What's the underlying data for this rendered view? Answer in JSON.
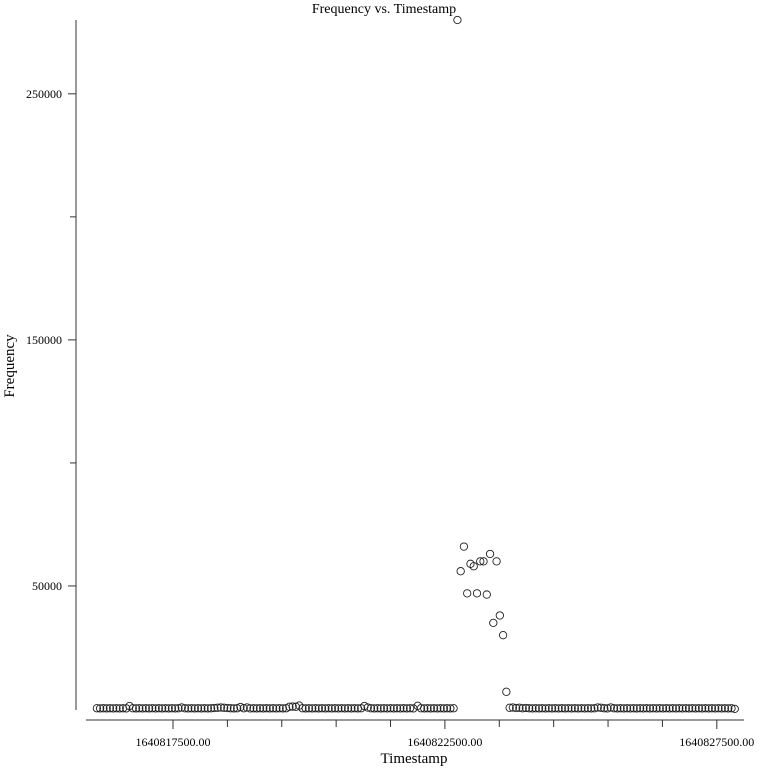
{
  "chart_data": {
    "type": "scatter",
    "title": "Frequency vs. Timestamp",
    "xlabel": "Timestamp",
    "ylabel": "Frequency",
    "xlim": [
      1640815900,
      1640828000
    ],
    "ylim": [
      0,
      280000
    ],
    "x_ticks": [
      1640817500,
      1640822500,
      1640827500
    ],
    "x_tick_labels": [
      "1640817500.00",
      "1640822500.00",
      "1640827500.00"
    ],
    "x_minor_ticks": [
      1640818500,
      1640819500,
      1640820500,
      1640821500,
      1640823500,
      1640824500,
      1640825500,
      1640826500
    ],
    "y_ticks": [
      50000,
      150000,
      250000
    ],
    "y_tick_labels": [
      "50000",
      "150000",
      "250000"
    ],
    "y_minor_ticks": [
      100000,
      200000
    ],
    "grid": false,
    "marker": "open-circle",
    "series": [
      {
        "points": [
          [
            1640816100,
            300
          ],
          [
            1640816160,
            250
          ],
          [
            1640816220,
            300
          ],
          [
            1640816280,
            250
          ],
          [
            1640816340,
            300
          ],
          [
            1640816400,
            250
          ],
          [
            1640816460,
            300
          ],
          [
            1640816520,
            250
          ],
          [
            1640816580,
            300
          ],
          [
            1640816640,
            250
          ],
          [
            1640816700,
            1200
          ],
          [
            1640816760,
            300
          ],
          [
            1640816820,
            250
          ],
          [
            1640816880,
            300
          ],
          [
            1640816940,
            250
          ],
          [
            1640817000,
            300
          ],
          [
            1640817060,
            250
          ],
          [
            1640817120,
            300
          ],
          [
            1640817180,
            250
          ],
          [
            1640817240,
            300
          ],
          [
            1640817300,
            250
          ],
          [
            1640817360,
            300
          ],
          [
            1640817420,
            250
          ],
          [
            1640817480,
            300
          ],
          [
            1640817540,
            250
          ],
          [
            1640817600,
            300
          ],
          [
            1640817660,
            600
          ],
          [
            1640817720,
            300
          ],
          [
            1640817780,
            250
          ],
          [
            1640817840,
            300
          ],
          [
            1640817900,
            250
          ],
          [
            1640817960,
            300
          ],
          [
            1640818020,
            250
          ],
          [
            1640818080,
            300
          ],
          [
            1640818140,
            250
          ],
          [
            1640818200,
            300
          ],
          [
            1640818260,
            400
          ],
          [
            1640818320,
            500
          ],
          [
            1640818380,
            600
          ],
          [
            1640818440,
            500
          ],
          [
            1640818500,
            400
          ],
          [
            1640818560,
            300
          ],
          [
            1640818620,
            250
          ],
          [
            1640818680,
            300
          ],
          [
            1640818740,
            800
          ],
          [
            1640818800,
            300
          ],
          [
            1640818860,
            600
          ],
          [
            1640818920,
            250
          ],
          [
            1640818980,
            300
          ],
          [
            1640819040,
            250
          ],
          [
            1640819100,
            300
          ],
          [
            1640819160,
            250
          ],
          [
            1640819220,
            300
          ],
          [
            1640819280,
            250
          ],
          [
            1640819340,
            300
          ],
          [
            1640819400,
            250
          ],
          [
            1640819460,
            300
          ],
          [
            1640819520,
            250
          ],
          [
            1640819580,
            300
          ],
          [
            1640819640,
            900
          ],
          [
            1640819700,
            1000
          ],
          [
            1640819760,
            900
          ],
          [
            1640819820,
            1400
          ],
          [
            1640819880,
            300
          ],
          [
            1640819940,
            250
          ],
          [
            1640820000,
            300
          ],
          [
            1640820060,
            250
          ],
          [
            1640820120,
            300
          ],
          [
            1640820180,
            250
          ],
          [
            1640820240,
            300
          ],
          [
            1640820300,
            250
          ],
          [
            1640820360,
            300
          ],
          [
            1640820420,
            250
          ],
          [
            1640820480,
            300
          ],
          [
            1640820540,
            250
          ],
          [
            1640820600,
            300
          ],
          [
            1640820660,
            250
          ],
          [
            1640820720,
            300
          ],
          [
            1640820780,
            250
          ],
          [
            1640820840,
            300
          ],
          [
            1640820900,
            250
          ],
          [
            1640820960,
            300
          ],
          [
            1640821020,
            1200
          ],
          [
            1640821080,
            600
          ],
          [
            1640821140,
            300
          ],
          [
            1640821200,
            250
          ],
          [
            1640821260,
            300
          ],
          [
            1640821320,
            250
          ],
          [
            1640821380,
            300
          ],
          [
            1640821440,
            250
          ],
          [
            1640821500,
            300
          ],
          [
            1640821560,
            250
          ],
          [
            1640821620,
            300
          ],
          [
            1640821680,
            250
          ],
          [
            1640821740,
            300
          ],
          [
            1640821800,
            250
          ],
          [
            1640821860,
            300
          ],
          [
            1640821920,
            250
          ],
          [
            1640822000,
            1300
          ],
          [
            1640822060,
            300
          ],
          [
            1640822120,
            250
          ],
          [
            1640822180,
            300
          ],
          [
            1640822240,
            250
          ],
          [
            1640822300,
            300
          ],
          [
            1640822360,
            250
          ],
          [
            1640822420,
            300
          ],
          [
            1640822480,
            250
          ],
          [
            1640822540,
            300
          ],
          [
            1640822600,
            250
          ],
          [
            1640822660,
            300
          ],
          [
            1640822730,
            280000
          ],
          [
            1640822790,
            56000
          ],
          [
            1640822850,
            66000
          ],
          [
            1640822910,
            47000
          ],
          [
            1640822970,
            59000
          ],
          [
            1640823030,
            58000
          ],
          [
            1640823090,
            47000
          ],
          [
            1640823150,
            60000
          ],
          [
            1640823210,
            60000
          ],
          [
            1640823270,
            46500
          ],
          [
            1640823330,
            63000
          ],
          [
            1640823390,
            35000
          ],
          [
            1640823450,
            60000
          ],
          [
            1640823510,
            38000
          ],
          [
            1640823570,
            30000
          ],
          [
            1640823630,
            7000
          ],
          [
            1640823690,
            500
          ],
          [
            1640823750,
            600
          ],
          [
            1640823810,
            400
          ],
          [
            1640823870,
            500
          ],
          [
            1640823930,
            300
          ],
          [
            1640823990,
            400
          ],
          [
            1640824050,
            300
          ],
          [
            1640824110,
            250
          ],
          [
            1640824170,
            300
          ],
          [
            1640824230,
            250
          ],
          [
            1640824290,
            300
          ],
          [
            1640824350,
            250
          ],
          [
            1640824410,
            300
          ],
          [
            1640824470,
            250
          ],
          [
            1640824530,
            300
          ],
          [
            1640824590,
            250
          ],
          [
            1640824650,
            300
          ],
          [
            1640824710,
            250
          ],
          [
            1640824770,
            300
          ],
          [
            1640824830,
            250
          ],
          [
            1640824890,
            300
          ],
          [
            1640824950,
            250
          ],
          [
            1640825010,
            300
          ],
          [
            1640825070,
            250
          ],
          [
            1640825130,
            300
          ],
          [
            1640825190,
            250
          ],
          [
            1640825250,
            300
          ],
          [
            1640825310,
            600
          ],
          [
            1640825370,
            500
          ],
          [
            1640825430,
            300
          ],
          [
            1640825490,
            250
          ],
          [
            1640825550,
            600
          ],
          [
            1640825610,
            300
          ],
          [
            1640825670,
            250
          ],
          [
            1640825730,
            300
          ],
          [
            1640825790,
            250
          ],
          [
            1640825850,
            300
          ],
          [
            1640825910,
            250
          ],
          [
            1640825970,
            300
          ],
          [
            1640826030,
            250
          ],
          [
            1640826090,
            300
          ],
          [
            1640826150,
            250
          ],
          [
            1640826210,
            300
          ],
          [
            1640826270,
            250
          ],
          [
            1640826330,
            300
          ],
          [
            1640826390,
            250
          ],
          [
            1640826450,
            300
          ],
          [
            1640826510,
            250
          ],
          [
            1640826570,
            300
          ],
          [
            1640826630,
            250
          ],
          [
            1640826690,
            300
          ],
          [
            1640826750,
            250
          ],
          [
            1640826810,
            300
          ],
          [
            1640826870,
            250
          ],
          [
            1640826930,
            300
          ],
          [
            1640826990,
            250
          ],
          [
            1640827050,
            300
          ],
          [
            1640827110,
            250
          ],
          [
            1640827170,
            300
          ],
          [
            1640827230,
            250
          ],
          [
            1640827290,
            300
          ],
          [
            1640827350,
            250
          ],
          [
            1640827410,
            300
          ],
          [
            1640827470,
            250
          ],
          [
            1640827530,
            300
          ],
          [
            1640827590,
            250
          ],
          [
            1640827650,
            300
          ],
          [
            1640827710,
            250
          ],
          [
            1640827770,
            300
          ],
          [
            1640827830,
            50
          ]
        ]
      }
    ]
  }
}
